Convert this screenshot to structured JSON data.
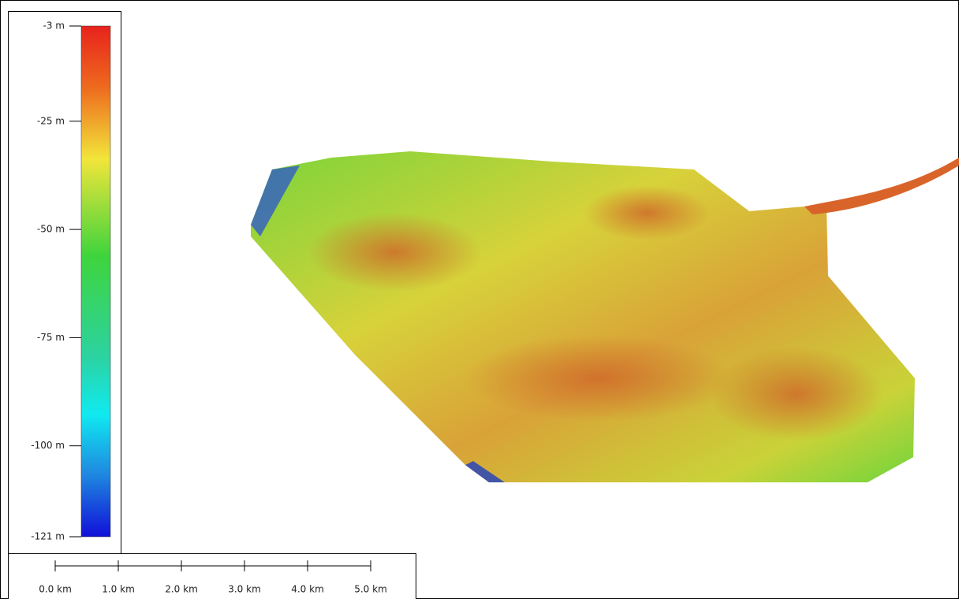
{
  "colorbar": {
    "min": -121,
    "max": -3,
    "ticks": [
      {
        "value": -3,
        "label": "-3 m"
      },
      {
        "value": -25,
        "label": "-25 m"
      },
      {
        "value": -50,
        "label": "-50 m"
      },
      {
        "value": -75,
        "label": "-75 m"
      },
      {
        "value": -100,
        "label": "-100 m"
      },
      {
        "value": -121,
        "label": "-121 m"
      }
    ]
  },
  "scale_bar": {
    "ticks": [
      {
        "value": 0,
        "label": "0.0 km"
      },
      {
        "value": 1,
        "label": "1.0 km"
      },
      {
        "value": 2,
        "label": "2.0 km"
      },
      {
        "value": 3,
        "label": "3.0 km"
      },
      {
        "value": 4,
        "label": "4.0 km"
      },
      {
        "value": 5,
        "label": "5.0 km"
      }
    ]
  }
}
